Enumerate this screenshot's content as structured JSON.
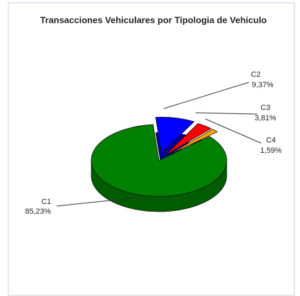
{
  "chart_data": {
    "type": "pie3d",
    "title": "Transacciones Vehiculares por Tipologia de Vehiculo",
    "categories": [
      "C1",
      "C2",
      "C3",
      "C4"
    ],
    "values": [
      85.23,
      9.37,
      3.81,
      1.59
    ],
    "value_labels": [
      "85,23%",
      "9,37%",
      "3,81%",
      "1,59%"
    ],
    "colors": [
      "#008000",
      "#0000ff",
      "#ff0000",
      "#ffa500"
    ]
  }
}
